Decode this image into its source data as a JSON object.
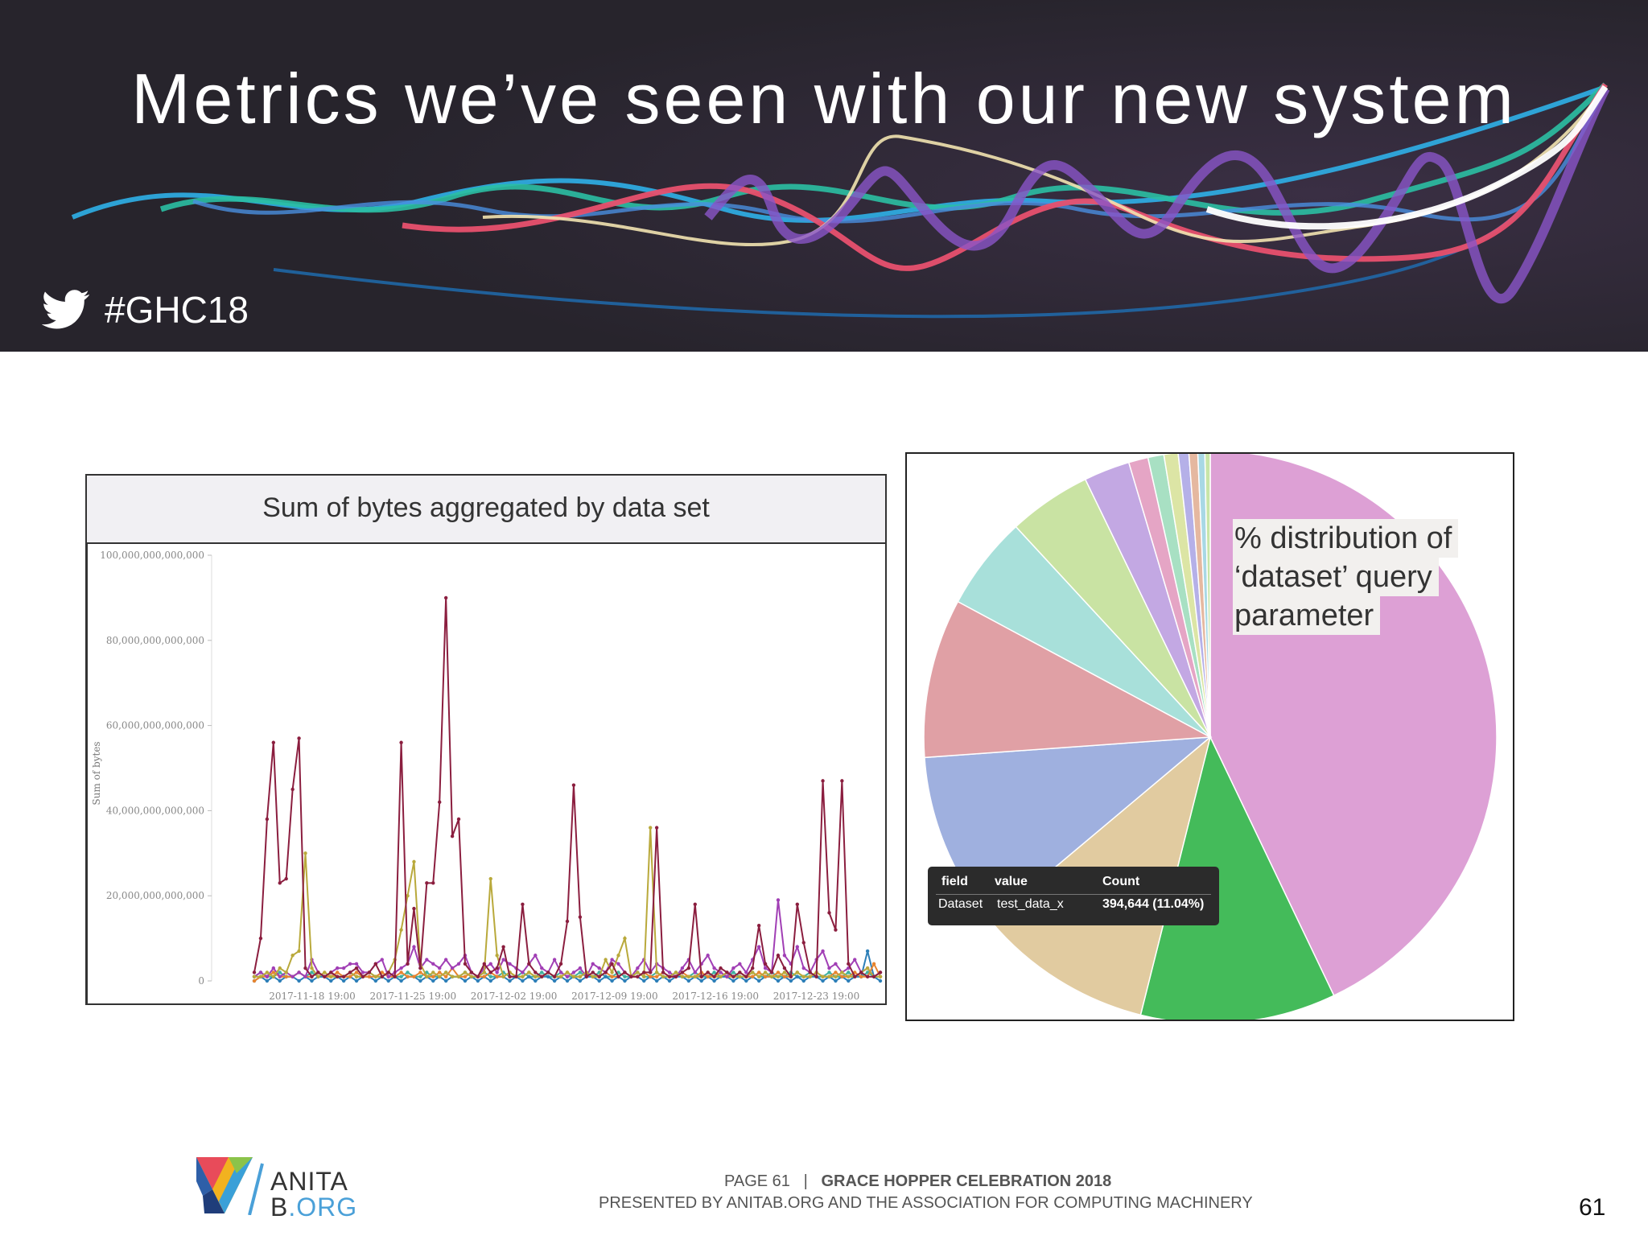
{
  "slide": {
    "title": "Metrics we’ve seen with our new system",
    "hashtag": "#GHC18",
    "page_number": "61"
  },
  "footer": {
    "page_label": "PAGE 61",
    "separator": "|",
    "event": "GRACE HOPPER CELEBRATION 2018",
    "presented_by": "PRESENTED BY ANITAB.ORG AND THE ASSOCIATION FOR COMPUTING MACHINERY",
    "logo_line1": "ANITA",
    "logo_line2_b": "B",
    "logo_line2_org": ".ORG"
  },
  "line_panel": {
    "title": "Sum of bytes aggregated by data set"
  },
  "pie_panel": {
    "label_lines": [
      "% distribution of",
      "‘dataset’ query",
      "parameter"
    ],
    "tooltip": {
      "headers": [
        "field",
        "value",
        "Count"
      ],
      "values": [
        "Dataset",
        "test_data_x",
        "394,644 (11.04%)"
      ]
    }
  },
  "chart_data": [
    {
      "type": "line",
      "ylabel": "Sum of bytes",
      "ylim": [
        0,
        100000000000000
      ],
      "yticks": [
        "0",
        "20,000,000,000,000",
        "40,000,000,000,000",
        "60,000,000,000,000",
        "80,000,000,000,000",
        "100,000,000,000,000"
      ],
      "xticks": [
        "2017-11-18 19:00",
        "2017-11-25 19:00",
        "2017-12-02 19:00",
        "2017-12-09 19:00",
        "2017-12-16 19:00",
        "2017-12-23 19:00"
      ],
      "grid": false,
      "series": [
        {
          "color": "#8b1e3f",
          "values": [
            2,
            10,
            38,
            56,
            23,
            24,
            45,
            57,
            3,
            1,
            2,
            1,
            2,
            1,
            1,
            2,
            3,
            1,
            2,
            4,
            1,
            2,
            1,
            56,
            4,
            17,
            3,
            23,
            23,
            42,
            90,
            34,
            38,
            4,
            2,
            1,
            4,
            2,
            3,
            8,
            1,
            1,
            18,
            4,
            2,
            1,
            2,
            1,
            4,
            14,
            46,
            15,
            1,
            2,
            1,
            2,
            4,
            1,
            2,
            1,
            1,
            2,
            2,
            36,
            2,
            1,
            1,
            2,
            3,
            18,
            1,
            2,
            1,
            3,
            2,
            1,
            2,
            1,
            3,
            13,
            4,
            2,
            6,
            3,
            1,
            18,
            9,
            2,
            1,
            47,
            16,
            12,
            47,
            4,
            1,
            2,
            1,
            1,
            2
          ]
        },
        {
          "color": "#b9a93b",
          "values": [
            1,
            1,
            2,
            1,
            3,
            2,
            6,
            7,
            30,
            3,
            1,
            2,
            1,
            1,
            1,
            2,
            1,
            1,
            2,
            1,
            1,
            2,
            5,
            12,
            20,
            28,
            4,
            1,
            2,
            1,
            2,
            1,
            1,
            2,
            1,
            1,
            2,
            24,
            6,
            1,
            2,
            1,
            1,
            2,
            1,
            1,
            2,
            1,
            1,
            2,
            1,
            1,
            2,
            1,
            1,
            5,
            2,
            6,
            10,
            1,
            2,
            1,
            36,
            2,
            1,
            1,
            2,
            1,
            1,
            1,
            1,
            2,
            1,
            1,
            2,
            1,
            1,
            1,
            2,
            1,
            2,
            1,
            1,
            2,
            1,
            2,
            1,
            1,
            2,
            1,
            1,
            1,
            2,
            1,
            1,
            2,
            3,
            1,
            1
          ]
        },
        {
          "color": "#a13fb5",
          "values": [
            1,
            2,
            1,
            3,
            1,
            2,
            1,
            2,
            1,
            5,
            2,
            1,
            2,
            3,
            3,
            4,
            4,
            2,
            2,
            4,
            5,
            1,
            2,
            3,
            4,
            8,
            3,
            5,
            4,
            3,
            5,
            3,
            4,
            6,
            2,
            1,
            3,
            4,
            2,
            5,
            4,
            3,
            2,
            4,
            6,
            3,
            2,
            5,
            2,
            1,
            2,
            3,
            1,
            4,
            3,
            2,
            5,
            4,
            2,
            1,
            3,
            5,
            2,
            4,
            3,
            2,
            1,
            3,
            5,
            2,
            4,
            6,
            3,
            2,
            1,
            3,
            4,
            2,
            5,
            8,
            3,
            2,
            19,
            6,
            4,
            8,
            3,
            2,
            5,
            7,
            3,
            4,
            2,
            3,
            5,
            2,
            3,
            1,
            2
          ]
        },
        {
          "color": "#e7842f",
          "values": [
            0,
            1,
            1,
            2,
            1,
            1,
            1,
            2,
            1,
            1,
            2,
            1,
            1,
            2,
            1,
            1,
            2,
            1,
            1,
            1,
            2,
            1,
            1,
            2,
            1,
            1,
            2,
            1,
            1,
            2,
            1,
            3,
            1,
            1,
            2,
            1,
            1,
            2,
            1,
            1,
            2,
            1,
            1,
            2,
            1,
            1,
            2,
            1,
            1,
            2,
            1,
            1,
            2,
            1,
            1,
            2,
            1,
            1,
            2,
            1,
            1,
            2,
            1,
            1,
            2,
            1,
            1,
            2,
            1,
            1,
            2,
            1,
            1,
            2,
            1,
            1,
            2,
            1,
            1,
            2,
            1,
            1,
            2,
            1,
            1,
            2,
            1,
            1,
            2,
            1,
            1,
            2,
            1,
            1,
            2,
            1,
            1,
            4,
            1
          ]
        },
        {
          "color": "#2d7fb8",
          "values": [
            0,
            1,
            0,
            1,
            0,
            1,
            1,
            0,
            1,
            0,
            1,
            1,
            0,
            1,
            0,
            1,
            0,
            1,
            1,
            0,
            1,
            0,
            1,
            0,
            1,
            1,
            0,
            1,
            0,
            1,
            0,
            1,
            1,
            0,
            1,
            0,
            1,
            0,
            1,
            1,
            0,
            1,
            0,
            1,
            0,
            1,
            1,
            0,
            1,
            0,
            1,
            0,
            1,
            1,
            0,
            1,
            0,
            1,
            0,
            1,
            1,
            0,
            1,
            0,
            1,
            0,
            1,
            1,
            0,
            1,
            0,
            1,
            0,
            1,
            1,
            0,
            1,
            0,
            1,
            0,
            1,
            1,
            0,
            1,
            0,
            1,
            0,
            1,
            1,
            0,
            1,
            0,
            1,
            0,
            1,
            1,
            7,
            1,
            0
          ]
        },
        {
          "color": "#3fb0a0",
          "values": [
            1,
            2,
            1,
            1,
            2,
            1,
            1,
            2,
            1,
            2,
            1,
            1,
            2,
            1,
            1,
            2,
            1,
            1,
            2,
            1,
            1,
            2,
            1,
            1,
            2,
            1,
            1,
            2,
            1,
            1,
            2,
            1,
            1,
            2,
            1,
            1,
            2,
            1,
            1,
            2,
            1,
            1,
            2,
            1,
            1,
            2,
            1,
            1,
            2,
            1,
            1,
            2,
            1,
            1,
            2,
            1,
            1,
            2,
            1,
            1,
            2,
            1,
            1,
            2,
            1,
            1,
            2,
            1,
            1,
            2,
            1,
            1,
            2,
            1,
            1,
            2,
            1,
            1,
            2,
            1,
            1,
            2,
            1,
            1,
            2,
            1,
            1,
            2,
            1,
            1,
            2,
            1,
            1,
            2,
            1,
            1,
            2,
            1,
            1
          ]
        }
      ]
    },
    {
      "type": "pie",
      "slice_colors": [
        "#dda0d5",
        "#44bb5a",
        "#e1cba0",
        "#9fb0df",
        "#e0a0a5",
        "#a8e0da",
        "#c9e3a3",
        "#c3a8e3",
        "#e5a5c5",
        "#a8e0c3",
        "#dce5a5",
        "#b5b0e8",
        "#e5b8a0",
        "#a8d8e5",
        "#c8e5a8"
      ],
      "values": [
        43.0,
        11.04,
        10.0,
        10.0,
        9.0,
        5.3,
        4.7,
        2.6,
        1.1,
        0.9,
        0.8,
        0.6,
        0.5,
        0.4,
        0.3
      ],
      "tooltip_slice_index": 2
    }
  ]
}
